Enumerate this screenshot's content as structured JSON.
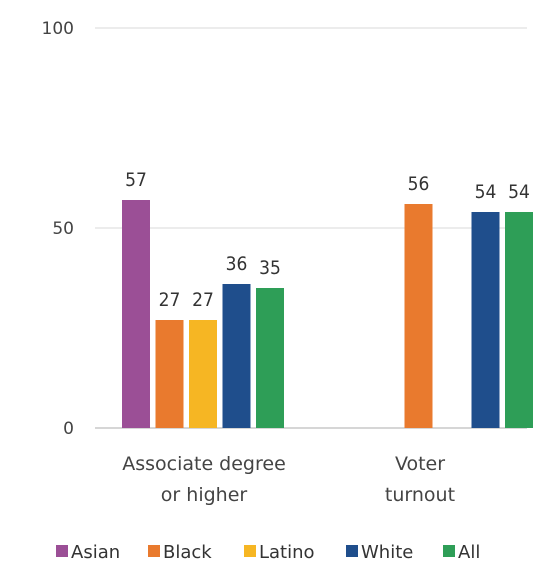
{
  "chart_data": {
    "type": "bar",
    "categories": [
      [
        "Associate degree",
        "or higher"
      ],
      [
        "Voter",
        "turnout"
      ]
    ],
    "series": [
      {
        "name": "Asian",
        "color": "#9b4f96",
        "values": [
          57,
          null
        ]
      },
      {
        "name": "Black",
        "color": "#e97a2e",
        "values": [
          27,
          56
        ]
      },
      {
        "name": "Latino",
        "color": "#f6b623",
        "values": [
          27,
          null
        ]
      },
      {
        "name": "White",
        "color": "#1f4e8c",
        "values": [
          36,
          54
        ]
      },
      {
        "name": "All",
        "color": "#2e9e57",
        "values": [
          35,
          54
        ]
      }
    ],
    "yticks": [
      0,
      50,
      100
    ],
    "ylim": [
      0,
      100
    ],
    "grid": true,
    "legend_position": "bottom"
  }
}
